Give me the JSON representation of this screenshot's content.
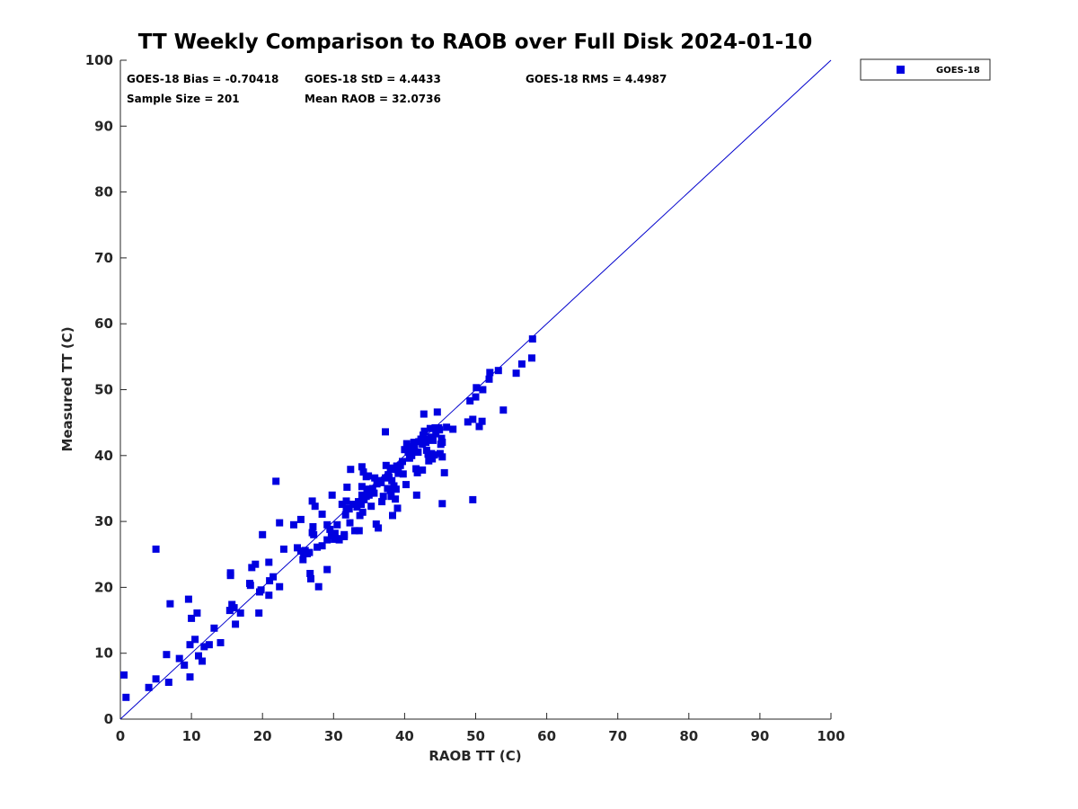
{
  "chart_data": {
    "type": "scatter",
    "title": "TT Weekly Comparison to RAOB over Full Disk 2024-01-10",
    "xlabel": "RAOB TT (C)",
    "ylabel": "Measured TT (C)",
    "xlim": [
      0,
      100
    ],
    "ylim": [
      0,
      100
    ],
    "xticks": [
      "0",
      "10",
      "20",
      "30",
      "40",
      "50",
      "60",
      "70",
      "80",
      "90",
      "100"
    ],
    "yticks": [
      "0",
      "10",
      "20",
      "30",
      "40",
      "50",
      "60",
      "70",
      "80",
      "90",
      "100"
    ],
    "legend_placement": "top-right outside",
    "reference_line": {
      "from": [
        0,
        0
      ],
      "to": [
        100,
        100
      ],
      "color": "#0000cc"
    },
    "stats": {
      "bias": "GOES-18 Bias = -0.70418",
      "std": "GOES-18 StD = 4.4433",
      "rms": "GOES-18 RMS = 4.4987",
      "sample_size": "Sample Size = 201",
      "mean_raob": "Mean RAOB = 32.0736"
    },
    "series": [
      {
        "name": "GOES-18",
        "color": "#0000e0",
        "marker": "square",
        "points": [
          [
            0.5,
            6.7
          ],
          [
            0.8,
            3.3
          ],
          [
            4.0,
            4.8
          ],
          [
            5.0,
            6.1
          ],
          [
            5.0,
            25.8
          ],
          [
            6.5,
            9.8
          ],
          [
            6.8,
            5.6
          ],
          [
            7.0,
            17.5
          ],
          [
            8.3,
            9.2
          ],
          [
            9.0,
            8.2
          ],
          [
            9.6,
            18.2
          ],
          [
            9.8,
            6.4
          ],
          [
            9.8,
            11.3
          ],
          [
            10.0,
            15.3
          ],
          [
            10.5,
            12.1
          ],
          [
            10.8,
            16.1
          ],
          [
            11.0,
            9.6
          ],
          [
            11.5,
            8.8
          ],
          [
            11.8,
            11.0
          ],
          [
            12.5,
            11.3
          ],
          [
            13.2,
            13.8
          ],
          [
            14.1,
            11.6
          ],
          [
            15.4,
            16.5
          ],
          [
            15.5,
            22.2
          ],
          [
            15.5,
            21.8
          ],
          [
            15.7,
            17.4
          ],
          [
            16.0,
            16.9
          ],
          [
            16.2,
            14.4
          ],
          [
            16.9,
            16.1
          ],
          [
            18.2,
            20.6
          ],
          [
            18.3,
            20.3
          ],
          [
            18.5,
            23.0
          ],
          [
            19.0,
            23.5
          ],
          [
            19.5,
            16.1
          ],
          [
            19.6,
            19.3
          ],
          [
            19.8,
            19.6
          ],
          [
            20.0,
            28.0
          ],
          [
            20.9,
            23.8
          ],
          [
            20.9,
            18.8
          ],
          [
            21.0,
            21.0
          ],
          [
            21.5,
            21.6
          ],
          [
            21.9,
            36.1
          ],
          [
            22.4,
            29.8
          ],
          [
            22.4,
            20.1
          ],
          [
            23.0,
            25.8
          ],
          [
            24.4,
            29.5
          ],
          [
            25.4,
            30.3
          ],
          [
            25.4,
            25.5
          ],
          [
            25.7,
            24.2
          ],
          [
            25.8,
            25.2
          ],
          [
            26.0,
            25.6
          ],
          [
            26.6,
            25.3
          ],
          [
            26.7,
            22.1
          ],
          [
            26.8,
            21.3
          ],
          [
            27.0,
            33.1
          ],
          [
            27.0,
            28.3
          ],
          [
            27.1,
            29.2
          ],
          [
            27.2,
            28.0
          ],
          [
            27.4,
            32.3
          ],
          [
            27.7,
            26.1
          ],
          [
            27.9,
            20.1
          ],
          [
            28.4,
            26.3
          ],
          [
            28.4,
            31.1
          ],
          [
            29.1,
            22.7
          ],
          [
            29.1,
            29.5
          ],
          [
            29.1,
            27.2
          ],
          [
            29.5,
            28.8
          ],
          [
            29.7,
            27.8
          ],
          [
            29.8,
            34.0
          ],
          [
            30.1,
            27.3
          ],
          [
            30.2,
            28.2
          ],
          [
            30.5,
            27.4
          ],
          [
            30.8,
            27.2
          ],
          [
            31.2,
            32.6
          ],
          [
            31.5,
            28.0
          ],
          [
            31.5,
            27.7
          ],
          [
            31.7,
            31.0
          ],
          [
            31.8,
            32.0
          ],
          [
            31.9,
            35.2
          ],
          [
            32.2,
            31.9
          ],
          [
            32.3,
            29.8
          ],
          [
            32.4,
            37.9
          ],
          [
            32.8,
            32.6
          ],
          [
            33.0,
            28.6
          ],
          [
            33.3,
            32.2
          ],
          [
            33.6,
            28.6
          ],
          [
            33.7,
            30.9
          ],
          [
            34.0,
            38.3
          ],
          [
            34.0,
            35.3
          ],
          [
            34.0,
            34.0
          ],
          [
            34.1,
            31.4
          ],
          [
            34.2,
            37.5
          ],
          [
            34.3,
            33.3
          ],
          [
            34.6,
            33.8
          ],
          [
            34.7,
            34.9
          ],
          [
            34.9,
            36.9
          ],
          [
            35.0,
            34.0
          ],
          [
            35.2,
            34.3
          ],
          [
            35.3,
            32.3
          ],
          [
            35.7,
            34.3
          ],
          [
            35.8,
            36.6
          ],
          [
            36.0,
            29.6
          ],
          [
            36.3,
            29.0
          ],
          [
            36.5,
            36.2
          ],
          [
            36.8,
            33.0
          ],
          [
            37.0,
            33.8
          ],
          [
            37.3,
            43.6
          ],
          [
            37.4,
            38.5
          ],
          [
            37.6,
            35.0
          ],
          [
            37.7,
            37.1
          ],
          [
            38.0,
            34.7
          ],
          [
            38.1,
            33.8
          ],
          [
            38.2,
            36.2
          ],
          [
            38.3,
            30.9
          ],
          [
            38.4,
            37.9
          ],
          [
            38.5,
            35.4
          ],
          [
            38.7,
            33.4
          ],
          [
            38.8,
            34.9
          ],
          [
            38.9,
            38.4
          ],
          [
            39.0,
            32.0
          ],
          [
            39.1,
            37.3
          ],
          [
            39.7,
            39.1
          ],
          [
            39.8,
            37.2
          ],
          [
            40.0,
            40.9
          ],
          [
            40.2,
            35.6
          ],
          [
            40.5,
            40.5
          ],
          [
            40.8,
            41.4
          ],
          [
            41.0,
            40.0
          ],
          [
            41.3,
            42.0
          ],
          [
            41.6,
            38.0
          ],
          [
            41.7,
            34.0
          ],
          [
            41.8,
            37.4
          ],
          [
            41.9,
            40.5
          ],
          [
            42.0,
            42.1
          ],
          [
            42.3,
            42.5
          ],
          [
            42.5,
            37.8
          ],
          [
            42.6,
            43.1
          ],
          [
            42.7,
            46.3
          ],
          [
            42.8,
            43.7
          ],
          [
            43.0,
            42.0
          ],
          [
            43.1,
            40.8
          ],
          [
            43.3,
            40.2
          ],
          [
            43.4,
            39.2
          ],
          [
            43.6,
            44.1
          ],
          [
            43.8,
            40.3
          ],
          [
            43.9,
            39.5
          ],
          [
            44.0,
            42.3
          ],
          [
            44.2,
            40.1
          ],
          [
            44.4,
            43.3
          ],
          [
            44.6,
            46.6
          ],
          [
            44.8,
            44.2
          ],
          [
            45.0,
            40.3
          ],
          [
            45.1,
            41.7
          ],
          [
            45.2,
            42.6
          ],
          [
            45.3,
            42.0
          ],
          [
            45.3,
            39.8
          ],
          [
            45.3,
            32.7
          ],
          [
            45.6,
            37.4
          ],
          [
            45.9,
            44.3
          ],
          [
            46.8,
            44.0
          ],
          [
            48.9,
            45.1
          ],
          [
            49.2,
            48.3
          ],
          [
            49.6,
            45.5
          ],
          [
            49.6,
            33.3
          ],
          [
            50.0,
            48.9
          ],
          [
            50.1,
            50.3
          ],
          [
            50.5,
            44.4
          ],
          [
            50.9,
            45.2
          ],
          [
            51.0,
            50.0
          ],
          [
            51.9,
            51.6
          ],
          [
            52.0,
            52.6
          ],
          [
            53.2,
            52.9
          ],
          [
            53.9,
            46.9
          ],
          [
            55.7,
            52.5
          ],
          [
            56.5,
            53.9
          ],
          [
            57.9,
            54.8
          ],
          [
            58.0,
            57.7
          ],
          [
            41.4,
            41.0
          ],
          [
            39.4,
            38.5
          ],
          [
            36.1,
            35.7
          ],
          [
            33.5,
            33.0
          ],
          [
            30.5,
            29.5
          ],
          [
            40.7,
            39.6
          ],
          [
            43.3,
            42.5
          ],
          [
            37.8,
            36.7
          ],
          [
            35.5,
            35.0
          ],
          [
            38.0,
            38.1
          ],
          [
            44.9,
            43.9
          ],
          [
            42.5,
            41.7
          ],
          [
            40.3,
            41.8
          ],
          [
            36.7,
            35.9
          ],
          [
            33.9,
            32.6
          ],
          [
            41.1,
            40.8
          ],
          [
            43.7,
            42.8
          ],
          [
            39.1,
            37.8
          ],
          [
            37.3,
            36.6
          ],
          [
            44.3,
            44.2
          ],
          [
            26.3,
            25.1
          ],
          [
            24.9,
            26.0
          ],
          [
            31.8,
            33.1
          ],
          [
            34.6,
            36.8
          ]
        ]
      }
    ]
  }
}
